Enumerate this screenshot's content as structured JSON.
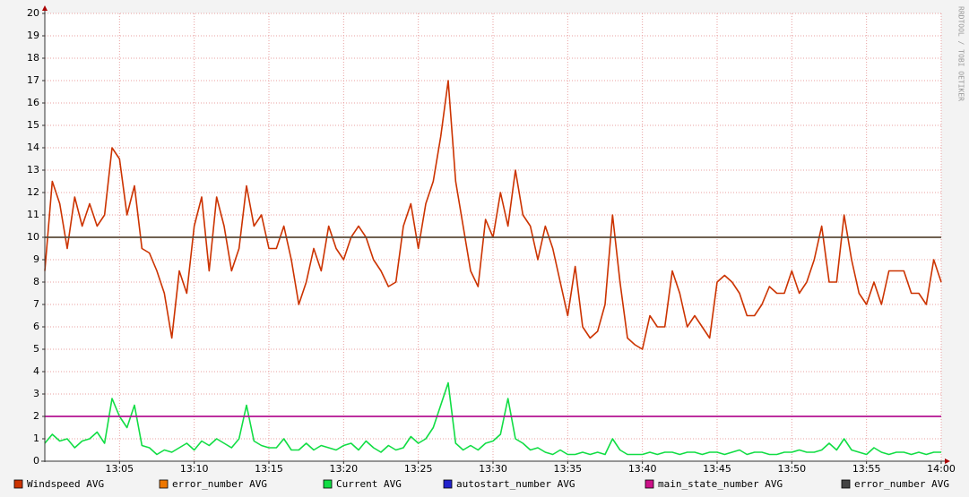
{
  "chart_data": {
    "type": "line",
    "watermark": "RRDTOOL / TOBI OETIKER",
    "xlim": [
      0,
      60
    ],
    "xticks": [
      {
        "value": 5,
        "label": "13:05"
      },
      {
        "value": 10,
        "label": "13:10"
      },
      {
        "value": 15,
        "label": "13:15"
      },
      {
        "value": 20,
        "label": "13:20"
      },
      {
        "value": 25,
        "label": "13:25"
      },
      {
        "value": 30,
        "label": "13:30"
      },
      {
        "value": 35,
        "label": "13:35"
      },
      {
        "value": 40,
        "label": "13:40"
      },
      {
        "value": 45,
        "label": "13:45"
      },
      {
        "value": 50,
        "label": "13:50"
      },
      {
        "value": 55,
        "label": "13:55"
      },
      {
        "value": 60,
        "label": "14:00"
      }
    ],
    "ylim": [
      0,
      20
    ],
    "yticks": [
      0,
      1,
      2,
      3,
      4,
      5,
      6,
      7,
      8,
      9,
      10,
      11,
      12,
      13,
      14,
      15,
      16,
      17,
      18,
      19,
      20
    ],
    "grid": true,
    "x": [
      0,
      0.5,
      1,
      1.5,
      2,
      2.5,
      3,
      3.5,
      4,
      4.5,
      5,
      5.5,
      6,
      6.5,
      7,
      7.5,
      8,
      8.5,
      9,
      9.5,
      10,
      10.5,
      11,
      11.5,
      12,
      12.5,
      13,
      13.5,
      14,
      14.5,
      15,
      15.5,
      16,
      16.5,
      17,
      17.5,
      18,
      18.5,
      19,
      19.5,
      20,
      20.5,
      21,
      21.5,
      22,
      22.5,
      23,
      23.5,
      24,
      24.5,
      25,
      25.5,
      26,
      26.5,
      27,
      27.5,
      28,
      28.5,
      29,
      29.5,
      30,
      30.5,
      31,
      31.5,
      32,
      32.5,
      33,
      33.5,
      34,
      34.5,
      35,
      35.5,
      36,
      36.5,
      37,
      37.5,
      38,
      38.5,
      39,
      39.5,
      40,
      40.5,
      41,
      41.5,
      42,
      42.5,
      43,
      43.5,
      44,
      44.5,
      45,
      45.5,
      46,
      46.5,
      47,
      47.5,
      48,
      48.5,
      49,
      49.5,
      50,
      50.5,
      51,
      51.5,
      52,
      52.5,
      53,
      53.5,
      54,
      54.5,
      55,
      55.5,
      56,
      56.5,
      57,
      57.5,
      58,
      58.5,
      59,
      59.5,
      60
    ],
    "series": [
      {
        "name": "Windspeed AVG",
        "color": "#cc3300",
        "values": [
          8.5,
          12.5,
          11.5,
          9.5,
          11.8,
          10.5,
          11.5,
          10.5,
          11,
          14,
          13.5,
          11,
          12.3,
          9.5,
          9.3,
          8.5,
          7.5,
          5.5,
          8.5,
          7.5,
          10.5,
          11.8,
          8.5,
          11.8,
          10.5,
          8.5,
          9.5,
          12.3,
          10.5,
          11,
          9.5,
          9.5,
          10.5,
          9,
          7,
          8,
          9.5,
          8.5,
          10.5,
          9.5,
          9,
          10,
          10.5,
          10,
          9,
          8.5,
          7.8,
          8,
          10.5,
          11.5,
          9.5,
          11.5,
          12.5,
          14.5,
          17,
          12.5,
          10.5,
          8.5,
          7.8,
          10.8,
          10,
          12,
          10.5,
          13,
          11,
          10.5,
          9,
          10.5,
          9.5,
          8,
          6.5,
          8.7,
          6,
          5.5,
          5.8,
          7,
          11,
          8,
          5.5,
          5.2,
          5,
          6.5,
          6,
          6,
          8.5,
          7.5,
          6,
          6.5,
          6,
          5.5,
          8,
          8.3,
          8,
          7.5,
          6.5,
          6.5,
          7,
          7.8,
          7.5,
          7.5,
          8.5,
          7.5,
          8,
          9,
          10.5,
          8,
          8,
          11,
          9,
          7.5,
          7,
          8,
          7,
          8.5,
          8.5,
          8.5,
          7.5,
          7.5,
          7,
          9,
          8
        ]
      },
      {
        "name": "error_number AVG",
        "color": "#ee7700",
        "values": [
          10,
          10,
          10,
          10,
          10,
          10,
          10,
          10,
          10,
          10,
          10,
          10,
          10,
          10,
          10,
          10,
          10,
          10,
          10,
          10,
          10,
          10,
          10,
          10,
          10,
          10,
          10,
          10,
          10,
          10,
          10,
          10,
          10,
          10,
          10,
          10,
          10,
          10,
          10,
          10,
          10,
          10,
          10,
          10,
          10,
          10,
          10,
          10,
          10,
          10,
          10,
          10,
          10,
          10,
          10,
          10,
          10,
          10,
          10,
          10,
          10,
          10,
          10,
          10,
          10,
          10,
          10,
          10,
          10,
          10,
          10,
          10,
          10,
          10,
          10,
          10,
          10,
          10,
          10,
          10,
          10,
          10,
          10,
          10,
          10,
          10,
          10,
          10,
          10,
          10,
          10,
          10,
          10,
          10,
          10,
          10,
          10,
          10,
          10,
          10,
          10,
          10,
          10,
          10,
          10,
          10,
          10,
          10,
          10,
          10,
          10,
          10,
          10,
          10,
          10,
          10,
          10,
          10,
          10,
          10,
          10
        ]
      },
      {
        "name": "Current AVG",
        "color": "#11dd44",
        "values": [
          0.8,
          1.2,
          0.9,
          1.0,
          0.6,
          0.9,
          1.0,
          1.3,
          0.8,
          2.8,
          2.0,
          1.5,
          2.5,
          0.7,
          0.6,
          0.3,
          0.5,
          0.4,
          0.6,
          0.8,
          0.5,
          0.9,
          0.7,
          1.0,
          0.8,
          0.6,
          1.0,
          2.5,
          0.9,
          0.7,
          0.6,
          0.6,
          1.0,
          0.5,
          0.5,
          0.8,
          0.5,
          0.7,
          0.6,
          0.5,
          0.7,
          0.8,
          0.5,
          0.9,
          0.6,
          0.4,
          0.7,
          0.5,
          0.6,
          1.1,
          0.8,
          1.0,
          1.5,
          2.5,
          3.5,
          0.8,
          0.5,
          0.7,
          0.5,
          0.8,
          0.9,
          1.2,
          2.8,
          1.0,
          0.8,
          0.5,
          0.6,
          0.4,
          0.3,
          0.5,
          0.3,
          0.3,
          0.4,
          0.3,
          0.4,
          0.3,
          1.0,
          0.5,
          0.3,
          0.3,
          0.3,
          0.4,
          0.3,
          0.4,
          0.4,
          0.3,
          0.4,
          0.4,
          0.3,
          0.4,
          0.4,
          0.3,
          0.4,
          0.5,
          0.3,
          0.4,
          0.4,
          0.3,
          0.3,
          0.4,
          0.4,
          0.5,
          0.4,
          0.4,
          0.5,
          0.8,
          0.5,
          1.0,
          0.5,
          0.4,
          0.3,
          0.6,
          0.4,
          0.3,
          0.4,
          0.4,
          0.3,
          0.4,
          0.3,
          0.4,
          0.4
        ]
      },
      {
        "name": "autostart_number AVG",
        "color": "#2222cc",
        "values": [
          2,
          2,
          2,
          2,
          2,
          2,
          2,
          2,
          2,
          2,
          2,
          2,
          2,
          2,
          2,
          2,
          2,
          2,
          2,
          2,
          2,
          2,
          2,
          2,
          2,
          2,
          2,
          2,
          2,
          2,
          2,
          2,
          2,
          2,
          2,
          2,
          2,
          2,
          2,
          2,
          2,
          2,
          2,
          2,
          2,
          2,
          2,
          2,
          2,
          2,
          2,
          2,
          2,
          2,
          2,
          2,
          2,
          2,
          2,
          2,
          2,
          2,
          2,
          2,
          2,
          2,
          2,
          2,
          2,
          2,
          2,
          2,
          2,
          2,
          2,
          2,
          2,
          2,
          2,
          2,
          2,
          2,
          2,
          2,
          2,
          2,
          2,
          2,
          2,
          2,
          2,
          2,
          2,
          2,
          2,
          2,
          2,
          2,
          2,
          2,
          2,
          2,
          2,
          2,
          2,
          2,
          2,
          2,
          2,
          2,
          2,
          2,
          2,
          2,
          2,
          2,
          2,
          2,
          2,
          2,
          2
        ]
      },
      {
        "name": "main_state_number AVG",
        "color": "#cc1188",
        "values": [
          2,
          2,
          2,
          2,
          2,
          2,
          2,
          2,
          2,
          2,
          2,
          2,
          2,
          2,
          2,
          2,
          2,
          2,
          2,
          2,
          2,
          2,
          2,
          2,
          2,
          2,
          2,
          2,
          2,
          2,
          2,
          2,
          2,
          2,
          2,
          2,
          2,
          2,
          2,
          2,
          2,
          2,
          2,
          2,
          2,
          2,
          2,
          2,
          2,
          2,
          2,
          2,
          2,
          2,
          2,
          2,
          2,
          2,
          2,
          2,
          2,
          2,
          2,
          2,
          2,
          2,
          2,
          2,
          2,
          2,
          2,
          2,
          2,
          2,
          2,
          2,
          2,
          2,
          2,
          2,
          2,
          2,
          2,
          2,
          2,
          2,
          2,
          2,
          2,
          2,
          2,
          2,
          2,
          2,
          2,
          2,
          2,
          2,
          2,
          2,
          2,
          2,
          2,
          2,
          2,
          2,
          2,
          2,
          2,
          2,
          2,
          2,
          2,
          2,
          2,
          2,
          2,
          2,
          2,
          2,
          2
        ]
      },
      {
        "name": "error_number AVG",
        "color": "#444444",
        "values": [
          10,
          10,
          10,
          10,
          10,
          10,
          10,
          10,
          10,
          10,
          10,
          10,
          10,
          10,
          10,
          10,
          10,
          10,
          10,
          10,
          10,
          10,
          10,
          10,
          10,
          10,
          10,
          10,
          10,
          10,
          10,
          10,
          10,
          10,
          10,
          10,
          10,
          10,
          10,
          10,
          10,
          10,
          10,
          10,
          10,
          10,
          10,
          10,
          10,
          10,
          10,
          10,
          10,
          10,
          10,
          10,
          10,
          10,
          10,
          10,
          10,
          10,
          10,
          10,
          10,
          10,
          10,
          10,
          10,
          10,
          10,
          10,
          10,
          10,
          10,
          10,
          10,
          10,
          10,
          10,
          10,
          10,
          10,
          10,
          10,
          10,
          10,
          10,
          10,
          10,
          10,
          10,
          10,
          10,
          10,
          10,
          10,
          10,
          10,
          10,
          10,
          10,
          10,
          10,
          10,
          10,
          10,
          10,
          10,
          10,
          10,
          10,
          10,
          10,
          10,
          10,
          10,
          10,
          10,
          10,
          10
        ]
      }
    ]
  }
}
